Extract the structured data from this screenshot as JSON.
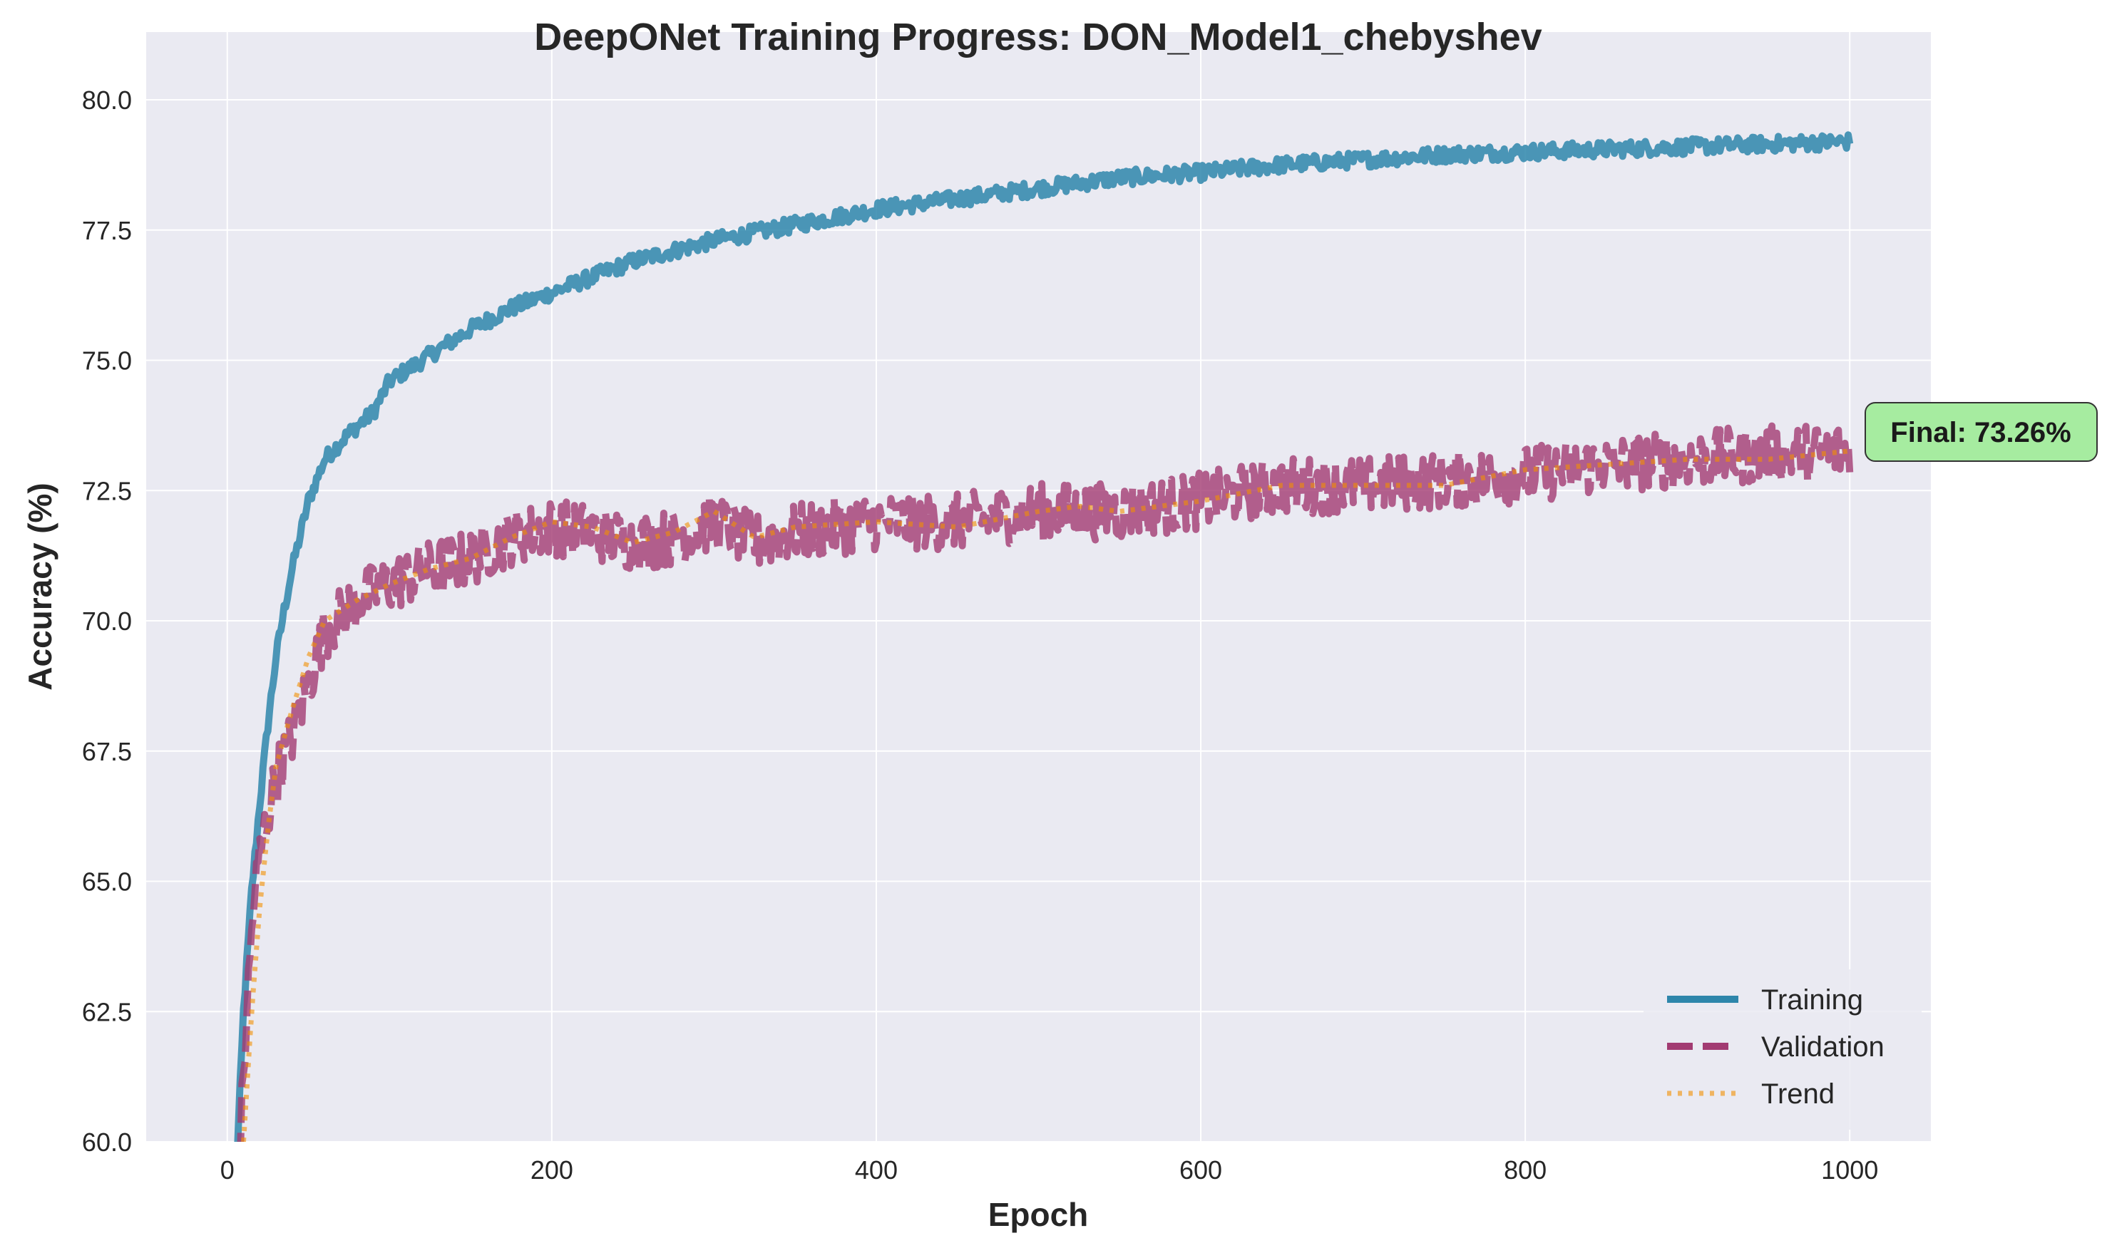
{
  "chart_data": {
    "type": "line",
    "title": "DeepONet Training Progress: DON_Model1_chebyshev",
    "xlabel": "Epoch",
    "ylabel": "Accuracy (%)",
    "xlim": [
      -50,
      1050
    ],
    "ylim": [
      60,
      81.3
    ],
    "xticks": [
      0,
      200,
      400,
      600,
      800,
      1000
    ],
    "xtick_labels": [
      "0",
      "200",
      "400",
      "600",
      "800",
      "1000"
    ],
    "yticks": [
      60,
      62.5,
      65,
      67.5,
      70,
      72.5,
      75,
      77.5,
      80
    ],
    "ytick_labels": [
      "60.0",
      "62.5",
      "65.0",
      "67.5",
      "70.0",
      "72.5",
      "75.0",
      "77.5",
      "80.0"
    ],
    "grid": true,
    "legend_position": "lower-right",
    "series": [
      {
        "name": "Training",
        "color": "#2e86ab",
        "style": "solid",
        "x": [
          5,
          10,
          15,
          20,
          25,
          30,
          35,
          40,
          50,
          60,
          75,
          90,
          100,
          125,
          150,
          175,
          200,
          225,
          250,
          275,
          300,
          350,
          400,
          450,
          500,
          550,
          600,
          650,
          700,
          750,
          800,
          850,
          900,
          950,
          1000
        ],
        "y": [
          59.0,
          62.5,
          64.8,
          66.5,
          68.0,
          69.3,
          70.2,
          71.0,
          72.3,
          73.1,
          73.6,
          74.0,
          74.6,
          75.1,
          75.6,
          76.0,
          76.3,
          76.6,
          76.9,
          77.1,
          77.3,
          77.6,
          77.9,
          78.1,
          78.3,
          78.5,
          78.6,
          78.75,
          78.85,
          78.95,
          79.0,
          79.05,
          79.1,
          79.15,
          79.2
        ],
        "noise": 0.15
      },
      {
        "name": "Validation",
        "color": "#a23b72",
        "style": "dashed",
        "x": [
          8,
          12,
          16,
          20,
          25,
          30,
          40,
          50,
          60,
          80,
          100,
          125,
          150,
          175,
          200,
          225,
          250,
          275,
          300,
          325,
          350,
          400,
          450,
          500,
          550,
          600,
          650,
          700,
          750,
          800,
          850,
          900,
          950,
          1000
        ],
        "y": [
          60.0,
          62.5,
          64.5,
          65.5,
          66.3,
          67.0,
          67.8,
          68.8,
          69.8,
          70.4,
          70.7,
          71.0,
          71.2,
          71.6,
          71.8,
          71.7,
          71.5,
          71.6,
          71.9,
          71.5,
          71.7,
          71.9,
          71.9,
          72.1,
          72.1,
          72.3,
          72.6,
          72.6,
          72.7,
          72.8,
          73.0,
          73.1,
          73.2,
          73.26
        ],
        "noise": 0.55
      },
      {
        "name": "Trend",
        "color": "#f18f01",
        "style": "dotted",
        "x": [
          10,
          15,
          20,
          25,
          30,
          40,
          50,
          60,
          80,
          100,
          125,
          150,
          175,
          200,
          225,
          250,
          275,
          300,
          325,
          350,
          400,
          450,
          500,
          525,
          550,
          600,
          650,
          700,
          750,
          800,
          850,
          900,
          950,
          1000
        ],
        "y": [
          60.0,
          62.5,
          64.5,
          66.0,
          67.2,
          68.3,
          69.3,
          70.0,
          70.4,
          70.7,
          71.0,
          71.2,
          71.6,
          71.9,
          71.8,
          71.5,
          71.7,
          72.1,
          71.6,
          71.8,
          71.9,
          71.8,
          72.1,
          72.2,
          72.1,
          72.3,
          72.6,
          72.6,
          72.6,
          72.9,
          73.0,
          73.1,
          73.1,
          73.26
        ],
        "noise": 0
      }
    ],
    "annotation": {
      "text": "Final: 73.26%",
      "x": 1000,
      "y": 73.26,
      "background": "#a6eca0"
    }
  }
}
